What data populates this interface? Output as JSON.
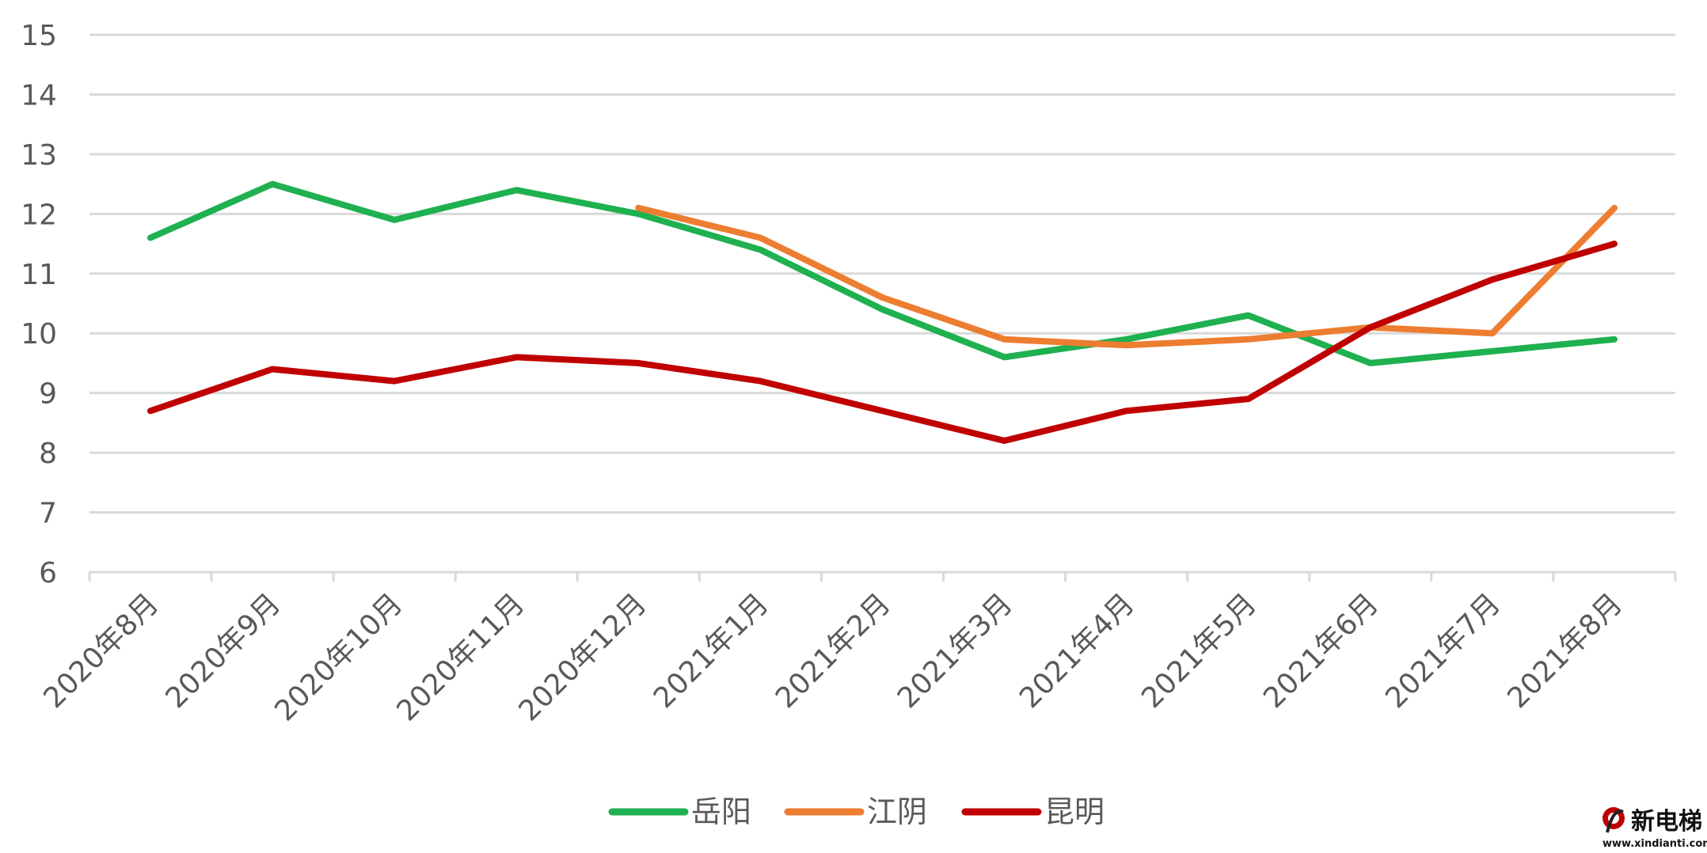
{
  "chart_data": {
    "type": "line",
    "title": "",
    "xlabel": "",
    "ylabel": "",
    "categories": [
      "2020年8月",
      "2020年9月",
      "2020年10月",
      "2020年11月",
      "2020年12月",
      "2021年1月",
      "2021年2月",
      "2021年3月",
      "2021年4月",
      "2021年5月",
      "2021年6月",
      "2021年7月",
      "2021年8月"
    ],
    "ylim": [
      6,
      15
    ],
    "yticks": [
      "6",
      "7",
      "8",
      "9",
      "10",
      "11",
      "12",
      "13",
      "14",
      "15"
    ],
    "grid": true,
    "legend_position": "bottom",
    "series": [
      {
        "name": "岳阳",
        "color": "#1fb050",
        "values": [
          11.6,
          12.5,
          11.9,
          12.4,
          12.0,
          11.4,
          10.4,
          9.6,
          9.9,
          10.3,
          9.5,
          9.7,
          9.9
        ]
      },
      {
        "name": "江阴",
        "color": "#ed7d31",
        "values": [
          null,
          null,
          null,
          null,
          12.1,
          11.6,
          10.6,
          9.9,
          9.8,
          9.9,
          10.1,
          10.0,
          12.1
        ]
      },
      {
        "name": "昆明",
        "color": "#c00000",
        "values": [
          8.7,
          9.4,
          9.2,
          9.6,
          9.5,
          9.2,
          8.7,
          8.2,
          8.7,
          8.9,
          10.1,
          10.9,
          11.5
        ]
      }
    ]
  },
  "watermark": {
    "name": "新电梯",
    "url": "www.xindianti.com"
  }
}
